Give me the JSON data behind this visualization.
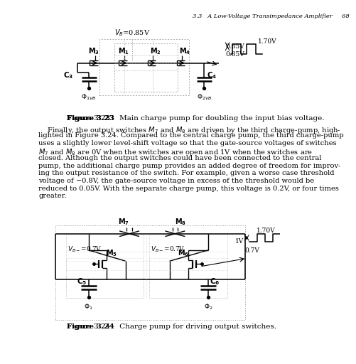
{
  "page_header": "3.3   A Low-Voltage Transimpedance Amplifier     68",
  "fig323_caption_bold": "Figure 3.23",
  "fig323_caption_rest": "    Main charge pump for doubling the input bias voltage.",
  "fig324_caption_bold": "Figure 3.24",
  "fig324_caption_rest": "    Charge pump for driving output switches.",
  "body_lines": [
    "    Finally, the output switches $M_7$ and $M_8$ are driven by the third charge-pump, high-",
    "lighted in Figure 3.24. Compared to the central charge pump, the third charge-pump",
    "uses a slightly lower level-shift voltage so that the gate-source voltages of switches",
    "$M_7$ and $M_8$ are 0V when the switches are open and 1V when the switches are",
    "closed. Although the output switches could have been connected to the central",
    "pump, the additional charge pump provides an added degree of freedom for improv-",
    "ing the output resistance of the switch. For example, given a worse case threshold",
    "voltage of −0.8V, the gate-source voltage in excess of the threshold would be",
    "reduced to 0.05V. With the separate charge pump, this voltage is 0.2V, or four times",
    "greater."
  ],
  "background_color": "#ffffff",
  "line_color": "#000000"
}
